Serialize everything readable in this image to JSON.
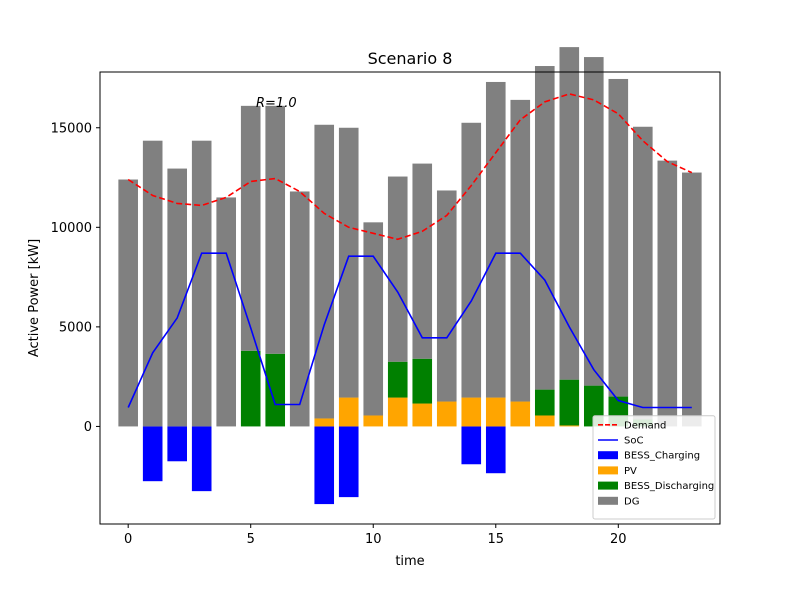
{
  "chart_data": {
    "type": "bar",
    "title": "Scenario 8",
    "xlabel": "time",
    "ylabel": "Active Power [kW]",
    "annotation": "R=1.0",
    "xlim": [
      -1.15,
      24.15
    ],
    "ylim": [
      -4900,
      17800
    ],
    "x_ticks": [
      0,
      5,
      10,
      15,
      20
    ],
    "y_ticks": [
      0,
      5000,
      10000,
      15000
    ],
    "grid": false,
    "legend_position": "lower-right",
    "x": [
      0,
      1,
      2,
      3,
      4,
      5,
      6,
      7,
      8,
      9,
      10,
      11,
      12,
      13,
      14,
      15,
      16,
      17,
      18,
      19,
      20,
      21,
      22,
      23
    ],
    "series": [
      {
        "name": "BESS_Charging",
        "kind": "bar",
        "color": "#0000ff",
        "values": [
          0,
          -2750,
          -1750,
          -3250,
          0,
          0,
          0,
          0,
          -3900,
          -3550,
          0,
          0,
          0,
          0,
          -1900,
          -2350,
          0,
          0,
          0,
          0,
          0,
          0,
          0,
          0
        ]
      },
      {
        "name": "PV",
        "kind": "bar",
        "color": "#ffa500",
        "values": [
          0,
          0,
          0,
          0,
          0,
          0,
          0,
          0,
          400,
          1450,
          550,
          1450,
          1150,
          1250,
          1450,
          1450,
          1250,
          550,
          50,
          0,
          0,
          0,
          0,
          0
        ]
      },
      {
        "name": "BESS_Discharging",
        "kind": "bar",
        "color": "#008000",
        "values": [
          0,
          0,
          0,
          0,
          0,
          3800,
          3650,
          0,
          0,
          0,
          0,
          1800,
          2250,
          0,
          0,
          0,
          0,
          1300,
          2300,
          2050,
          1500,
          350,
          0,
          0
        ]
      },
      {
        "name": "DG",
        "kind": "bar",
        "color": "#808080",
        "values": [
          12400,
          14350,
          12950,
          14350,
          11500,
          12300,
          12450,
          11800,
          14750,
          13550,
          9700,
          9300,
          9800,
          10600,
          13800,
          15850,
          15150,
          16250,
          16700,
          16500,
          15950,
          14700,
          13350,
          12750
        ]
      },
      {
        "name": "Demand",
        "kind": "line",
        "color": "#ff0000",
        "dashed": true,
        "values": [
          12400,
          11600,
          11200,
          11100,
          11500,
          12300,
          12450,
          11800,
          10700,
          10000,
          9700,
          9400,
          9800,
          10600,
          12100,
          13750,
          15400,
          16300,
          16700,
          16400,
          15700,
          14350,
          13300,
          12750
        ]
      },
      {
        "name": "SoC",
        "kind": "line",
        "color": "#0000ff",
        "dashed": false,
        "values": [
          950,
          3700,
          5450,
          8700,
          8700,
          4950,
          1100,
          1100,
          5100,
          8550,
          8550,
          6750,
          4450,
          4450,
          6300,
          8700,
          8700,
          7350,
          5000,
          2850,
          1300,
          950,
          950,
          950
        ]
      }
    ],
    "legend_order": [
      "Demand",
      "SoC",
      "BESS_Charging",
      "PV",
      "BESS_Discharging",
      "DG"
    ]
  }
}
